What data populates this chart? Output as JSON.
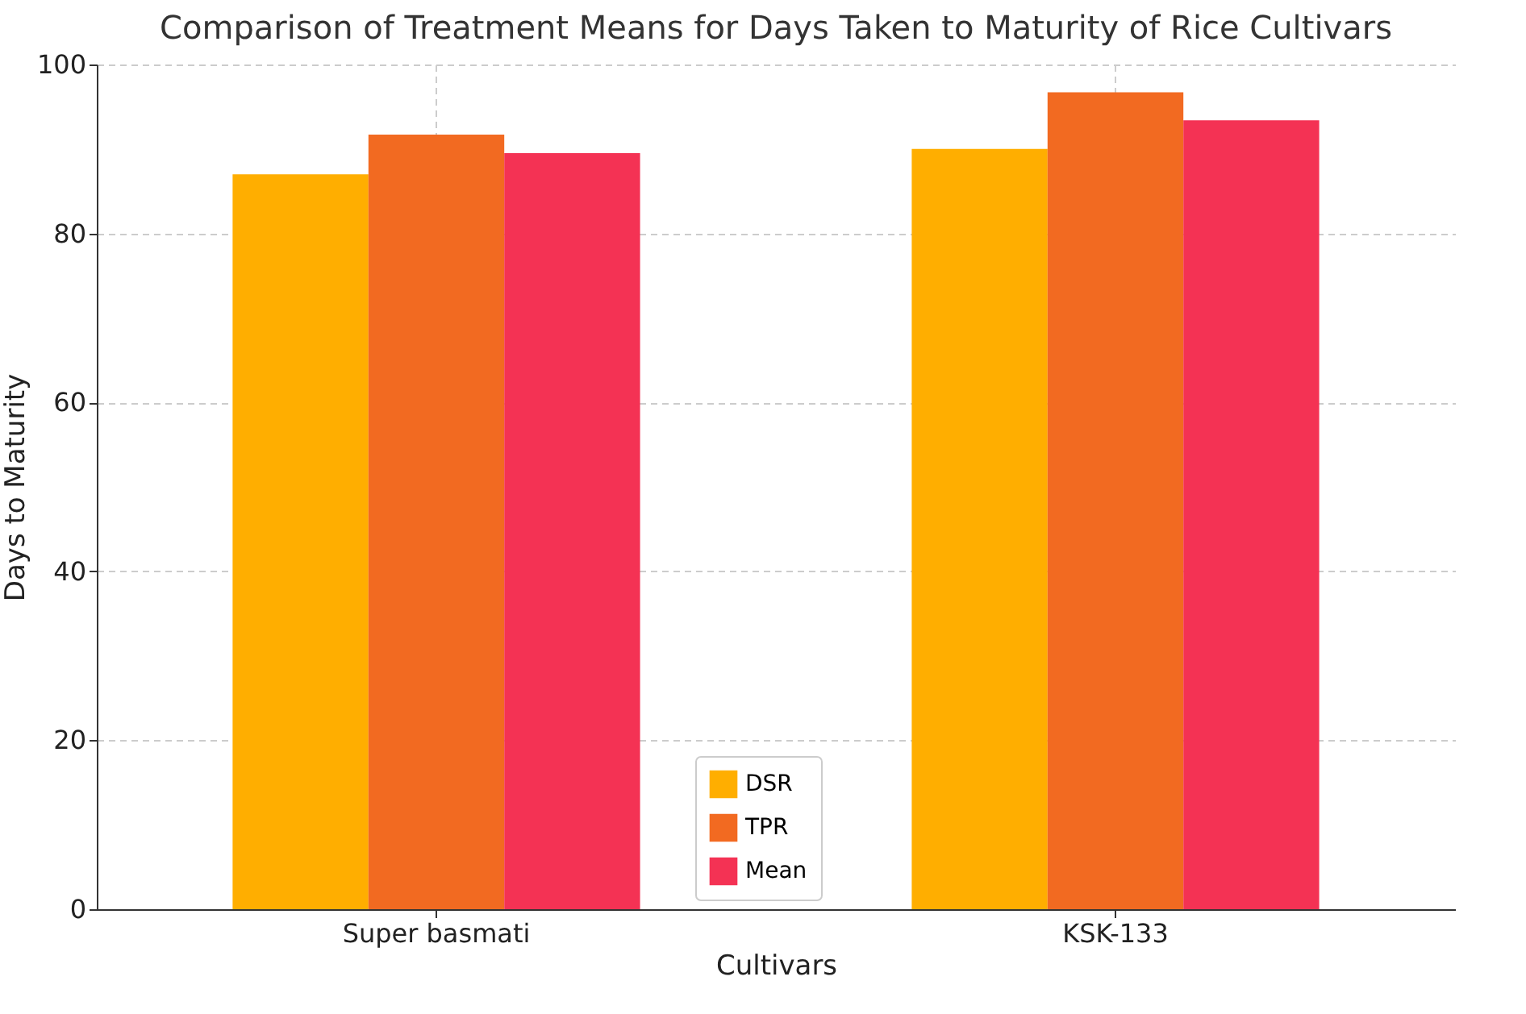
{
  "chart_data": {
    "type": "bar",
    "title": "Comparison of Treatment Means for Days Taken to Maturity of Rice Cultivars",
    "xlabel": "Cultivars",
    "ylabel": "Days to Maturity",
    "categories": [
      "Super basmati",
      "KSK-133"
    ],
    "series": [
      {
        "name": "DSR",
        "color": "#ffae00",
        "values": [
          87.0,
          90.0
        ]
      },
      {
        "name": "TPR",
        "color": "#f26a21",
        "values": [
          91.7,
          96.7
        ]
      },
      {
        "name": "Mean",
        "color": "#f43254",
        "values": [
          89.5,
          93.4
        ]
      }
    ],
    "ylim": [
      0,
      100
    ],
    "yticks": [
      0,
      20,
      40,
      60,
      80,
      100
    ],
    "grid": true,
    "legend": "bottom"
  }
}
